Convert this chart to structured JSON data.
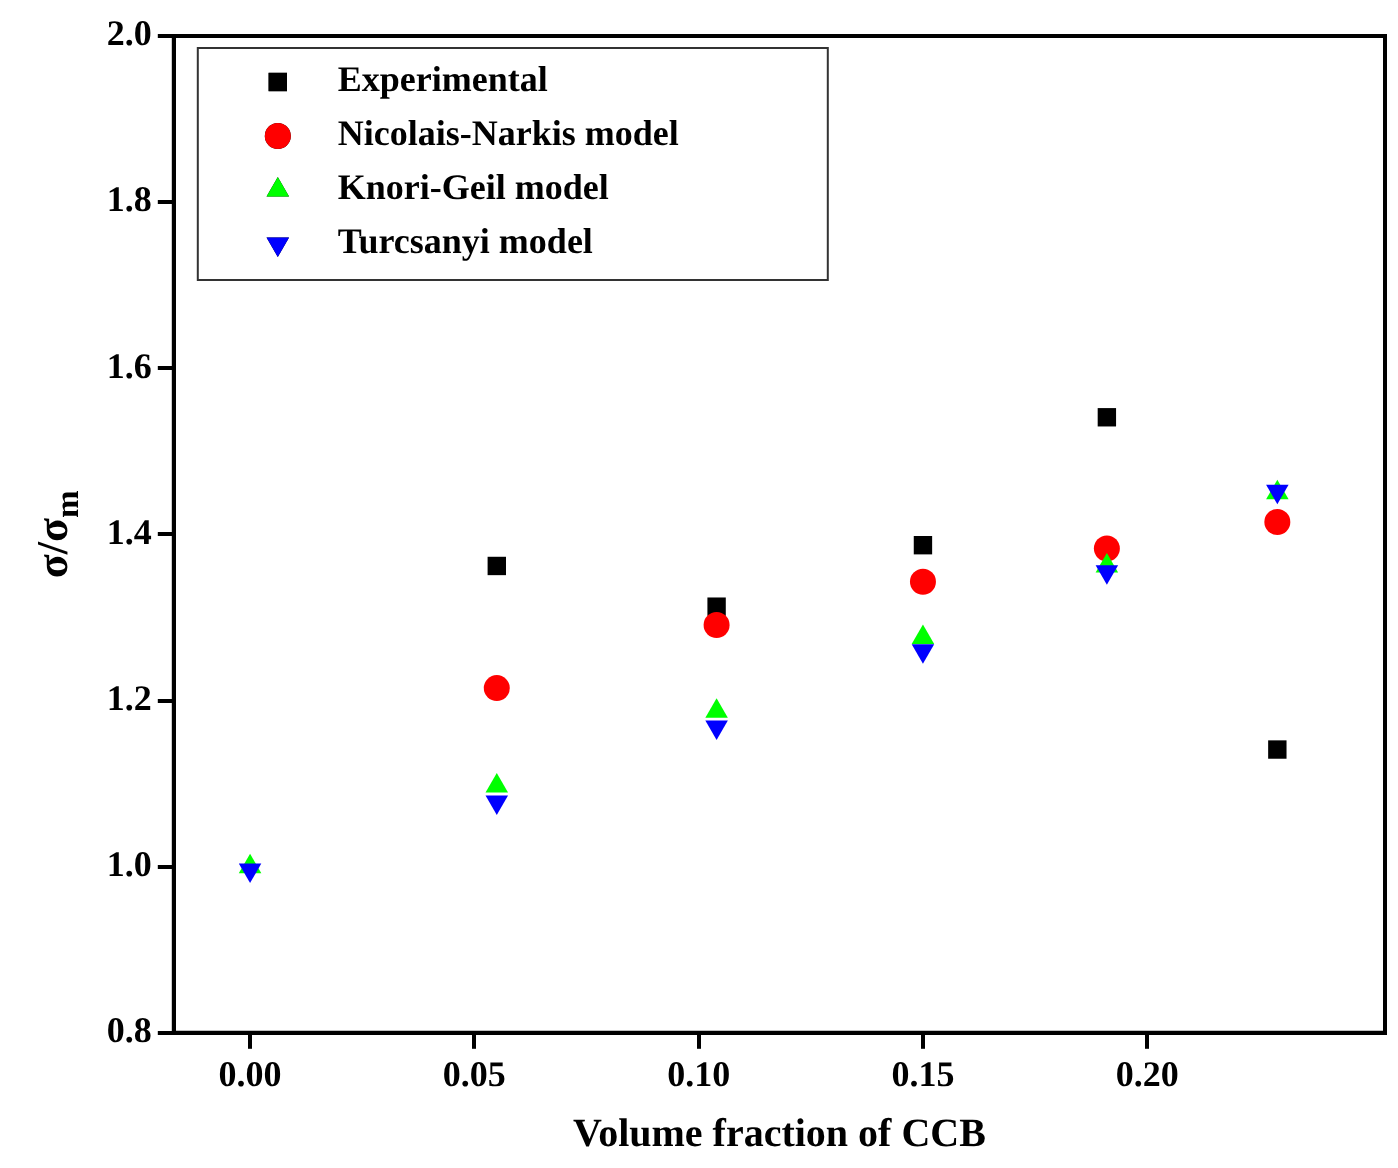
{
  "chart_data": {
    "type": "scatter",
    "xlabel": "Volume fraction of CCB",
    "ylabel": "σ/σ$_{m}$",
    "xlim": [
      -0.017,
      0.253
    ],
    "xticks": [
      {
        "value": 0,
        "label": "0.00"
      },
      0.05,
      {
        "value": 0.1,
        "label": "0.10"
      },
      0.15,
      {
        "value": 0.2,
        "label": "0.20"
      }
    ],
    "ylim": [
      0.8,
      2.0
    ],
    "yticks": [
      0.8,
      {
        "value": 1,
        "label": "1.0"
      },
      1.2,
      1.4,
      1.6,
      1.8,
      {
        "value": 2,
        "label": "2.0"
      }
    ],
    "grid": false,
    "legend": "top left",
    "series": [
      {
        "name": "Experimental",
        "color": "#000000",
        "marker": "square",
        "x": [
          null,
          0.055,
          0.104,
          0.15,
          0.191,
          0.229
        ],
        "values": [
          null,
          1.362,
          1.313,
          1.387,
          1.541,
          1.141
        ]
      },
      {
        "name": "Nicolais-Narkis model",
        "color": "#ff0000",
        "marker": "circle",
        "x": [
          null,
          0.055,
          0.104,
          0.15,
          0.191,
          0.229
        ],
        "values": [
          null,
          1.215,
          1.291,
          1.343,
          1.383,
          1.415
        ]
      },
      {
        "name": "Knori-Geil model",
        "color": "#00ff00",
        "marker": "triangle",
        "x": [
          0,
          0.055,
          0.104,
          0.15,
          0.191,
          0.229
        ],
        "values": [
          1.0,
          1.097,
          1.187,
          1.276,
          1.362,
          1.45
        ]
      },
      {
        "name": "Turcsanyi model",
        "color": "#0000ff",
        "marker": "triangle-down",
        "x": [
          0,
          0.055,
          0.104,
          0.15,
          0.191,
          0.229
        ],
        "values": [
          0.996,
          1.078,
          1.168,
          1.26,
          1.355,
          1.452
        ]
      }
    ]
  }
}
